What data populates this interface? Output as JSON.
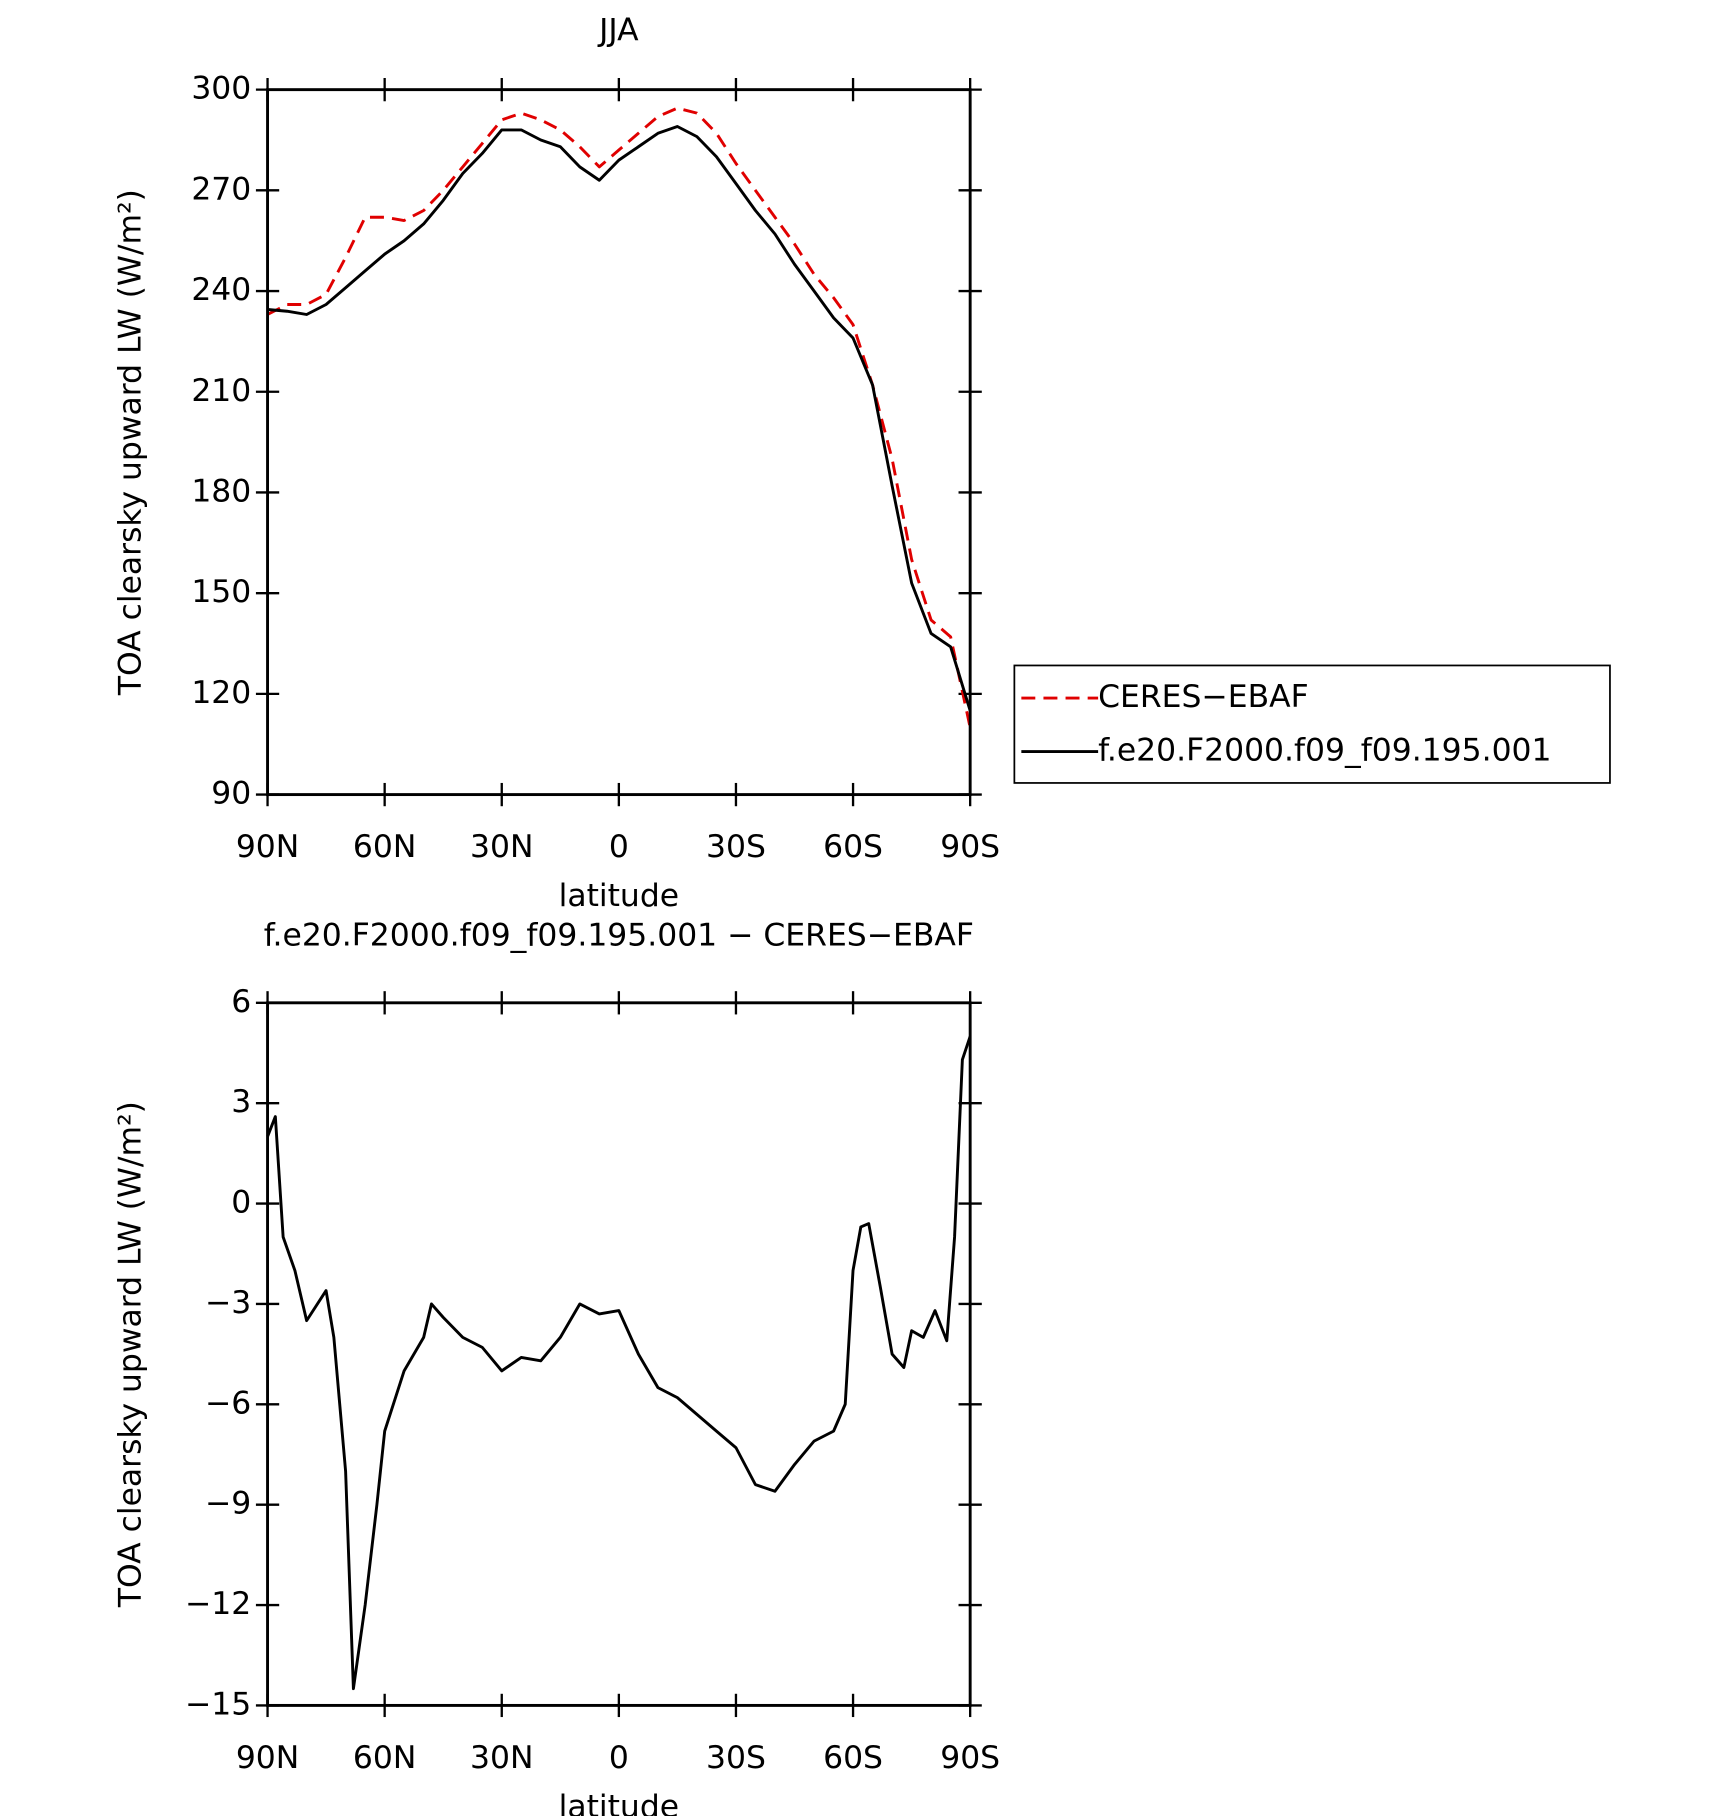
{
  "chart_data": [
    {
      "type": "line",
      "title": "JJA",
      "xlabel": "latitude",
      "ylabel": "TOA clearsky upward LW (W/m²)",
      "x": [
        90,
        85,
        80,
        75,
        70,
        65,
        60,
        55,
        50,
        45,
        40,
        35,
        30,
        25,
        20,
        15,
        10,
        5,
        0,
        -5,
        -10,
        -15,
        -20,
        -25,
        -30,
        -35,
        -40,
        -45,
        -50,
        -55,
        -60,
        -65,
        -70,
        -75,
        -80,
        -85,
        -90
      ],
      "xlim": [
        90,
        -90
      ],
      "xticks": [
        {
          "value": 90,
          "label": "90N"
        },
        {
          "value": 60,
          "label": "60N"
        },
        {
          "value": 30,
          "label": "30N"
        },
        0,
        {
          "value": -30,
          "label": "30S"
        },
        {
          "value": -60,
          "label": "60S"
        },
        {
          "value": -90,
          "label": "90S"
        }
      ],
      "ylim": [
        90,
        300
      ],
      "yticks": [
        90,
        120,
        150,
        180,
        210,
        240,
        270,
        300
      ],
      "legend": "outside-right",
      "series": [
        {
          "name": "CERES−EBAF",
          "color": "#e00000",
          "dash": true,
          "values": [
            233,
            236,
            236,
            239,
            250,
            262,
            262,
            261,
            264,
            270,
            277,
            284,
            291,
            293,
            291,
            288,
            283,
            277,
            282,
            287,
            292,
            294.5,
            293,
            287,
            278,
            270,
            262,
            254,
            245,
            238,
            230,
            212,
            190,
            160,
            142,
            137,
            110
          ]
        },
        {
          "name": "f.e20.F2000.f09_f09.195.001",
          "color": "#000000",
          "dash": false,
          "values": [
            234.5,
            234,
            233,
            236,
            241,
            246,
            251,
            255,
            260,
            267,
            275,
            281,
            288,
            288,
            285,
            283,
            277,
            273,
            279,
            283,
            287,
            289,
            286,
            280,
            272,
            264,
            257,
            248,
            240,
            232,
            226,
            212,
            182,
            153,
            138,
            134,
            115
          ]
        }
      ]
    },
    {
      "type": "line",
      "title": "f.e20.F2000.f09_f09.195.001 − CERES−EBAF",
      "xlabel": "latitude",
      "ylabel": "TOA clearsky upward LW (W/m²)",
      "x": [
        90,
        88,
        86,
        83,
        80,
        75,
        73,
        70,
        68,
        65,
        62,
        60,
        55,
        50,
        48,
        45,
        40,
        35,
        30,
        25,
        20,
        15,
        10,
        5,
        0,
        -5,
        -10,
        -15,
        -20,
        -25,
        -30,
        -35,
        -40,
        -45,
        -50,
        -55,
        -58,
        -60,
        -62,
        -64,
        -67,
        -70,
        -73,
        -75,
        -78,
        -81,
        -84,
        -86,
        -88,
        -90
      ],
      "xlim": [
        90,
        -90
      ],
      "xticks": [
        {
          "value": 90,
          "label": "90N"
        },
        {
          "value": 60,
          "label": "60N"
        },
        {
          "value": 30,
          "label": "30N"
        },
        0,
        {
          "value": -30,
          "label": "30S"
        },
        {
          "value": -60,
          "label": "60S"
        },
        {
          "value": -90,
          "label": "90S"
        }
      ],
      "ylim": [
        -15,
        6
      ],
      "yticks": [
        {
          "value": -15,
          "label": "−15"
        },
        {
          "value": -12,
          "label": "−12"
        },
        {
          "value": -9,
          "label": "−9"
        },
        {
          "value": -6,
          "label": "−6"
        },
        {
          "value": -3,
          "label": "−3"
        },
        0,
        3,
        6
      ],
      "series": [
        {
          "color": "#000000",
          "dash": false,
          "values": [
            2,
            2.6,
            -1,
            -2,
            -3.5,
            -2.6,
            -4,
            -8,
            -14.5,
            -12,
            -9,
            -6.8,
            -5,
            -4,
            -3,
            -3.4,
            -4,
            -4.3,
            -5,
            -4.6,
            -4.7,
            -4,
            -3,
            -3.3,
            -3.2,
            -4.5,
            -5.5,
            -5.8,
            -6.3,
            -6.8,
            -7.3,
            -8.4,
            -8.6,
            -7.8,
            -7.1,
            -6.8,
            -6,
            -2,
            -0.7,
            -0.6,
            -2.5,
            -4.5,
            -4.9,
            -3.8,
            -4,
            -3.2,
            -4.1,
            -1,
            4.3,
            5
          ]
        }
      ]
    }
  ]
}
